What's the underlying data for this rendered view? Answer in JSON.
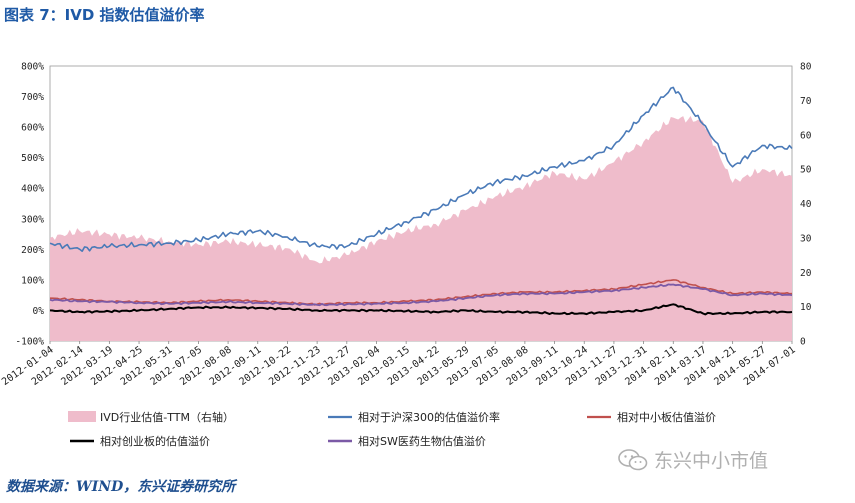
{
  "title": "图表 7：IVD 指数估值溢价率",
  "source": "数据来源：WIND，东兴证券研究所",
  "watermark": "东兴中小市值",
  "colors": {
    "pe_fill": "#efbccb",
    "hs300": "#4a7ab8",
    "smallcap": "#c0504d",
    "chinext": "#000000",
    "sw_pharma": "#7b5aa6",
    "title": "#1f5aa6"
  },
  "chart_data": {
    "type": "line",
    "x_ticks": [
      "2012-01-04",
      "2012-02-14",
      "2012-03-19",
      "2012-04-25",
      "2012-05-31",
      "2012-07-05",
      "2012-08-08",
      "2012-09-11",
      "2012-10-22",
      "2012-11-23",
      "2012-12-27",
      "2013-02-04",
      "2013-03-15",
      "2013-04-22",
      "2013-05-29",
      "2013-07-05",
      "2013-08-08",
      "2013-09-11",
      "2013-10-24",
      "2013-11-27",
      "2013-12-31",
      "2014-02-11",
      "2014-03-17",
      "2014-04-21",
      "2014-05-27",
      "2014-07-01"
    ],
    "y_left": {
      "min": -100,
      "max": 800,
      "step": 100,
      "tick_labels": [
        "-100%",
        "0%",
        "100%",
        "200%",
        "300%",
        "400%",
        "500%",
        "600%",
        "700%",
        "800%"
      ]
    },
    "y_right": {
      "min": 0,
      "max": 80,
      "step": 10,
      "tick_labels": [
        "0",
        "10",
        "20",
        "30",
        "40",
        "50",
        "60",
        "70",
        "80"
      ]
    },
    "series": [
      {
        "name": "IVD行业估值-TTM（右轴）",
        "kind": "area",
        "axis": "right",
        "values": [
          30,
          32,
          31,
          30,
          29,
          28,
          29,
          28,
          27,
          23,
          25,
          29,
          32,
          34,
          38,
          42,
          45,
          49,
          47,
          52,
          58,
          65,
          64,
          46,
          50,
          48
        ]
      },
      {
        "name": "相对于沪深300的估值溢价率",
        "kind": "line",
        "axis": "left",
        "values": [
          220,
          200,
          210,
          215,
          220,
          230,
          250,
          260,
          240,
          210,
          210,
          250,
          290,
          330,
          380,
          420,
          440,
          470,
          490,
          540,
          640,
          730,
          610,
          470,
          540,
          530
        ]
      },
      {
        "name": "相对中小板估值溢价",
        "kind": "line",
        "axis": "left",
        "values": [
          40,
          35,
          30,
          28,
          25,
          30,
          35,
          30,
          25,
          20,
          25,
          25,
          30,
          35,
          45,
          55,
          60,
          60,
          65,
          70,
          85,
          100,
          75,
          55,
          60,
          55
        ]
      },
      {
        "name": "相对创业板的估值溢价",
        "kind": "line",
        "axis": "left",
        "values": [
          0,
          -5,
          -3,
          0,
          5,
          10,
          10,
          8,
          5,
          0,
          0,
          0,
          -2,
          -5,
          0,
          -5,
          -5,
          -10,
          -10,
          -5,
          0,
          20,
          -10,
          -10,
          -5,
          -5
        ]
      },
      {
        "name": "相对SW医药生物估值溢价",
        "kind": "line",
        "axis": "left",
        "values": [
          35,
          30,
          28,
          25,
          22,
          25,
          28,
          25,
          22,
          18,
          20,
          22,
          25,
          30,
          40,
          50,
          55,
          55,
          60,
          65,
          75,
          85,
          70,
          50,
          55,
          50
        ]
      }
    ]
  }
}
